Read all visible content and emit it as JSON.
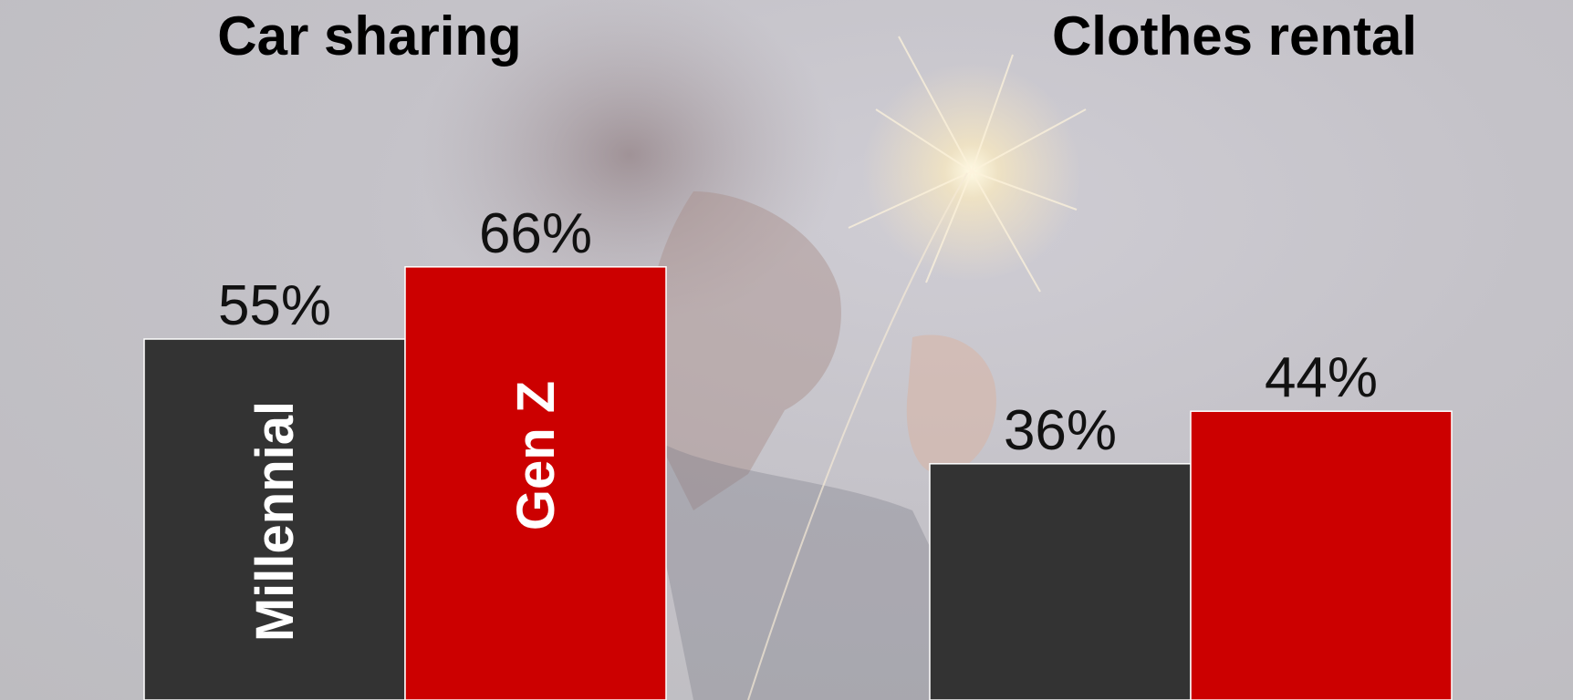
{
  "chart_data": {
    "type": "bar",
    "panels": [
      {
        "title": "Car sharing",
        "series": [
          {
            "name": "Millennial",
            "value": 55,
            "label": "55%"
          },
          {
            "name": "Gen Z",
            "value": 66,
            "label": "66%"
          }
        ]
      },
      {
        "title": "Clothes rental",
        "series": [
          {
            "name": "Millennial",
            "value": 36,
            "label": "36%"
          },
          {
            "name": "Gen Z",
            "value": 44,
            "label": "44%"
          }
        ]
      }
    ],
    "series_colors": {
      "Millennial": "#333333",
      "Gen Z": "#cc0000"
    },
    "series_labels_shown_in_bars": [
      "Millennial",
      "Gen Z"
    ],
    "ylim": [
      0,
      100
    ],
    "grid": false,
    "legend": "none",
    "background": "faded photo of a person holding a lit sparkler"
  }
}
